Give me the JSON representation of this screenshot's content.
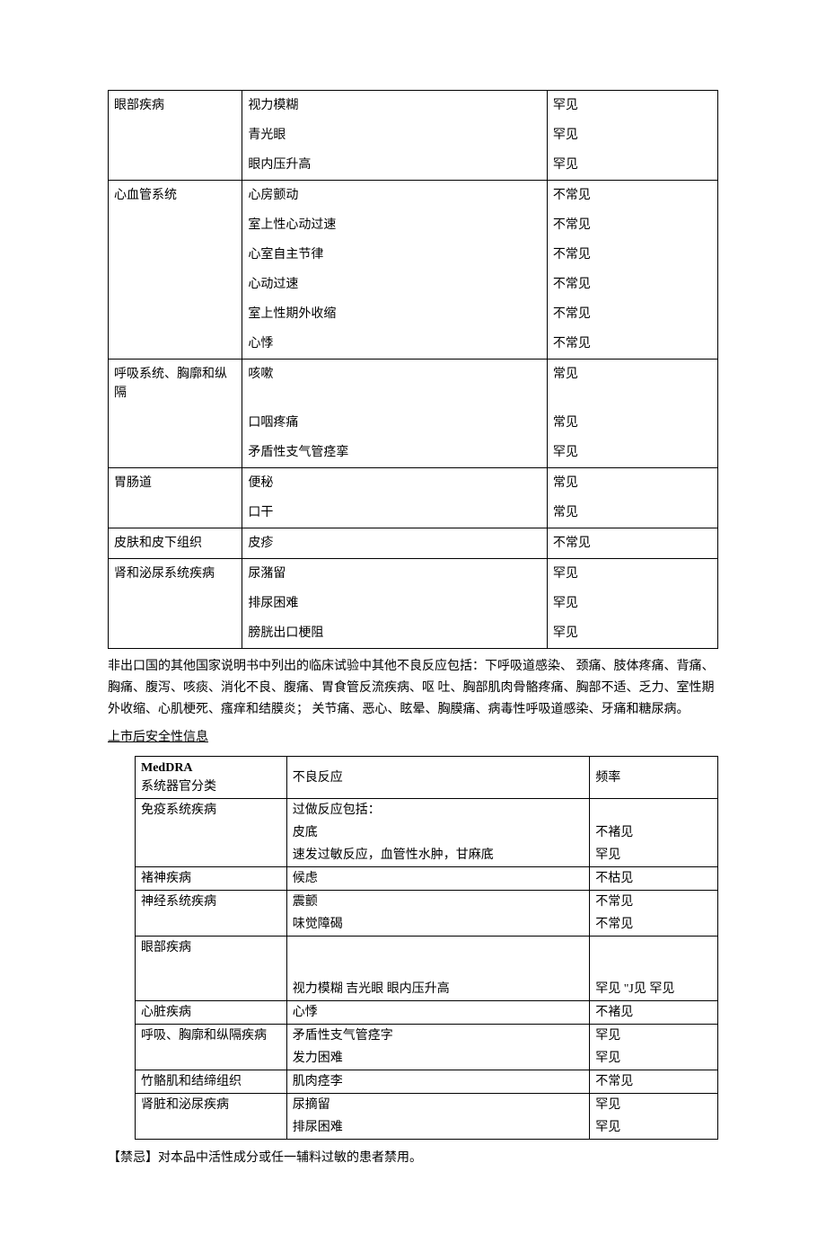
{
  "table1_groups": [
    {
      "category": "眼部疾病",
      "rows": [
        {
          "reaction": "视力模糊",
          "freq": "罕见"
        },
        {
          "reaction": "青光眼",
          "freq": "罕见"
        },
        {
          "reaction": "眼内压升高",
          "freq": "罕见"
        }
      ]
    },
    {
      "category": "心血管系统",
      "rows": [
        {
          "reaction": "心房颤动",
          "freq": "不常见"
        },
        {
          "reaction": "室上性心动过速",
          "freq": "不常见"
        },
        {
          "reaction": "心室自主节律",
          "freq": "不常见"
        },
        {
          "reaction": "心动过速",
          "freq": "不常见"
        },
        {
          "reaction": "室上性期外收缩",
          "freq": "不常见"
        },
        {
          "reaction": "心悸",
          "freq": "不常见"
        }
      ]
    },
    {
      "category": "呼吸系统、胸廓和纵隔",
      "rows": [
        {
          "reaction": "咳嗽",
          "freq": "常见"
        },
        {
          "reaction": "口咽疼痛",
          "freq": "常见"
        },
        {
          "reaction": "矛盾性支气管痉挛",
          "freq": "罕见"
        }
      ]
    },
    {
      "category": "胃肠道",
      "rows": [
        {
          "reaction": "便秘",
          "freq": "常见"
        },
        {
          "reaction": "口干",
          "freq": "常见"
        }
      ]
    },
    {
      "category": "皮肤和皮下组织",
      "rows": [
        {
          "reaction": "皮疹",
          "freq": "不常见"
        }
      ]
    },
    {
      "category": "肾和泌尿系统疾病",
      "rows": [
        {
          "reaction": "尿潴留",
          "freq": "罕见"
        },
        {
          "reaction": "排尿困难",
          "freq": "罕见"
        },
        {
          "reaction": "膀胱出口梗阻",
          "freq": "罕见"
        }
      ]
    }
  ],
  "paragraph1": "非出口国的其他国家说明书中列出的临床试验中其他不良反应包括：下呼吸道感染、 颈痛、肢体疼痛、背痛、胸痛、腹泻、咳痰、消化不良、腹痛、胃食管反流疾病、呕 吐、胸部肌肉骨骼疼痛、胸部不适、乏力、室性期外收缩、心肌梗死、瘙痒和结膜炎； 关节痛、恶心、眩晕、胸膜痛、病毒性呼吸道感染、牙痛和糖尿病。",
  "section_title": "上市后安全性信息",
  "table2_header": {
    "c1a": "MedDRA",
    "c1b": "系统器官分类",
    "c2": "不良反应",
    "c3": "频率"
  },
  "table2_groups": [
    {
      "category": "免疫系统疾病",
      "rows": [
        {
          "reaction": "过做反应包括：",
          "freq": ""
        },
        {
          "reaction": "皮底",
          "freq": "不褚见"
        },
        {
          "reaction": "速发过敏反应，血管性水肿，甘麻底",
          "freq": "罕见"
        }
      ]
    },
    {
      "category": "褚神疾病",
      "rows": [
        {
          "reaction": "候虑",
          "freq": "不枯见"
        }
      ]
    },
    {
      "category": "神经系统疾病",
      "rows": [
        {
          "reaction": "震颤",
          "freq": "不常见"
        },
        {
          "reaction": "味觉障碣",
          "freq": "不常见"
        }
      ]
    },
    {
      "category": "眼部疾病",
      "tall": true,
      "rows": [
        {
          "reaction": "",
          "freq": ""
        },
        {
          "reaction": "视力模糊 吉光眼 眼内压升高",
          "freq": "罕见 \"J见 罕见"
        }
      ]
    },
    {
      "category": "心脏疾病",
      "rows": [
        {
          "reaction": "心悸",
          "freq": "不褚见"
        }
      ]
    },
    {
      "category": "呼吸、胸廓和纵隔疾病",
      "rows": [
        {
          "reaction": "矛盾性支气管痉字",
          "freq": "罕见"
        },
        {
          "reaction": "发力困难",
          "freq": "罕见"
        }
      ]
    },
    {
      "category": "竹骼肌和结缔组织",
      "rows": [
        {
          "reaction": "肌肉痉李",
          "freq": "不常见"
        }
      ]
    },
    {
      "category": "肾脏和泌尿疾病",
      "rows": [
        {
          "reaction": "尿摘留",
          "freq": "罕见"
        },
        {
          "reaction": "排尿困难",
          "freq": "罕见"
        }
      ]
    }
  ],
  "footer": "【禁忌】对本品中活性成分或任一辅料过敏的患者禁用。"
}
